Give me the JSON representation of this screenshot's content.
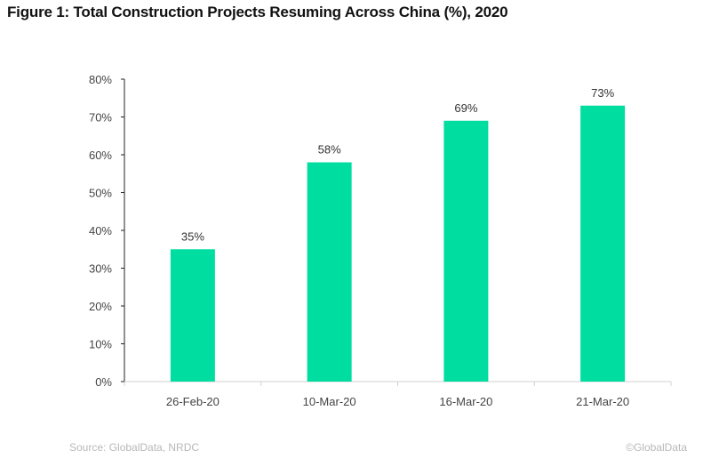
{
  "chart_data": {
    "type": "bar",
    "title": "Figure 1: Total Construction Projects Resuming Across China (%), 2020",
    "categories": [
      "26-Feb-20",
      "10-Mar-20",
      "16-Mar-20",
      "21-Mar-20"
    ],
    "values": [
      35,
      58,
      69,
      73
    ],
    "data_labels": [
      "35%",
      "58%",
      "69%",
      "73%"
    ],
    "xlabel": "",
    "ylabel": "",
    "ylim": [
      0,
      80
    ],
    "yticks": [
      "0%",
      "10%",
      "20%",
      "30%",
      "40%",
      "50%",
      "60%",
      "70%",
      "80%"
    ],
    "grid": false,
    "bar_color": "#00DDA0"
  },
  "footer": {
    "source": "Source: GlobalData, NRDC",
    "copyright": "©GlobalData"
  }
}
